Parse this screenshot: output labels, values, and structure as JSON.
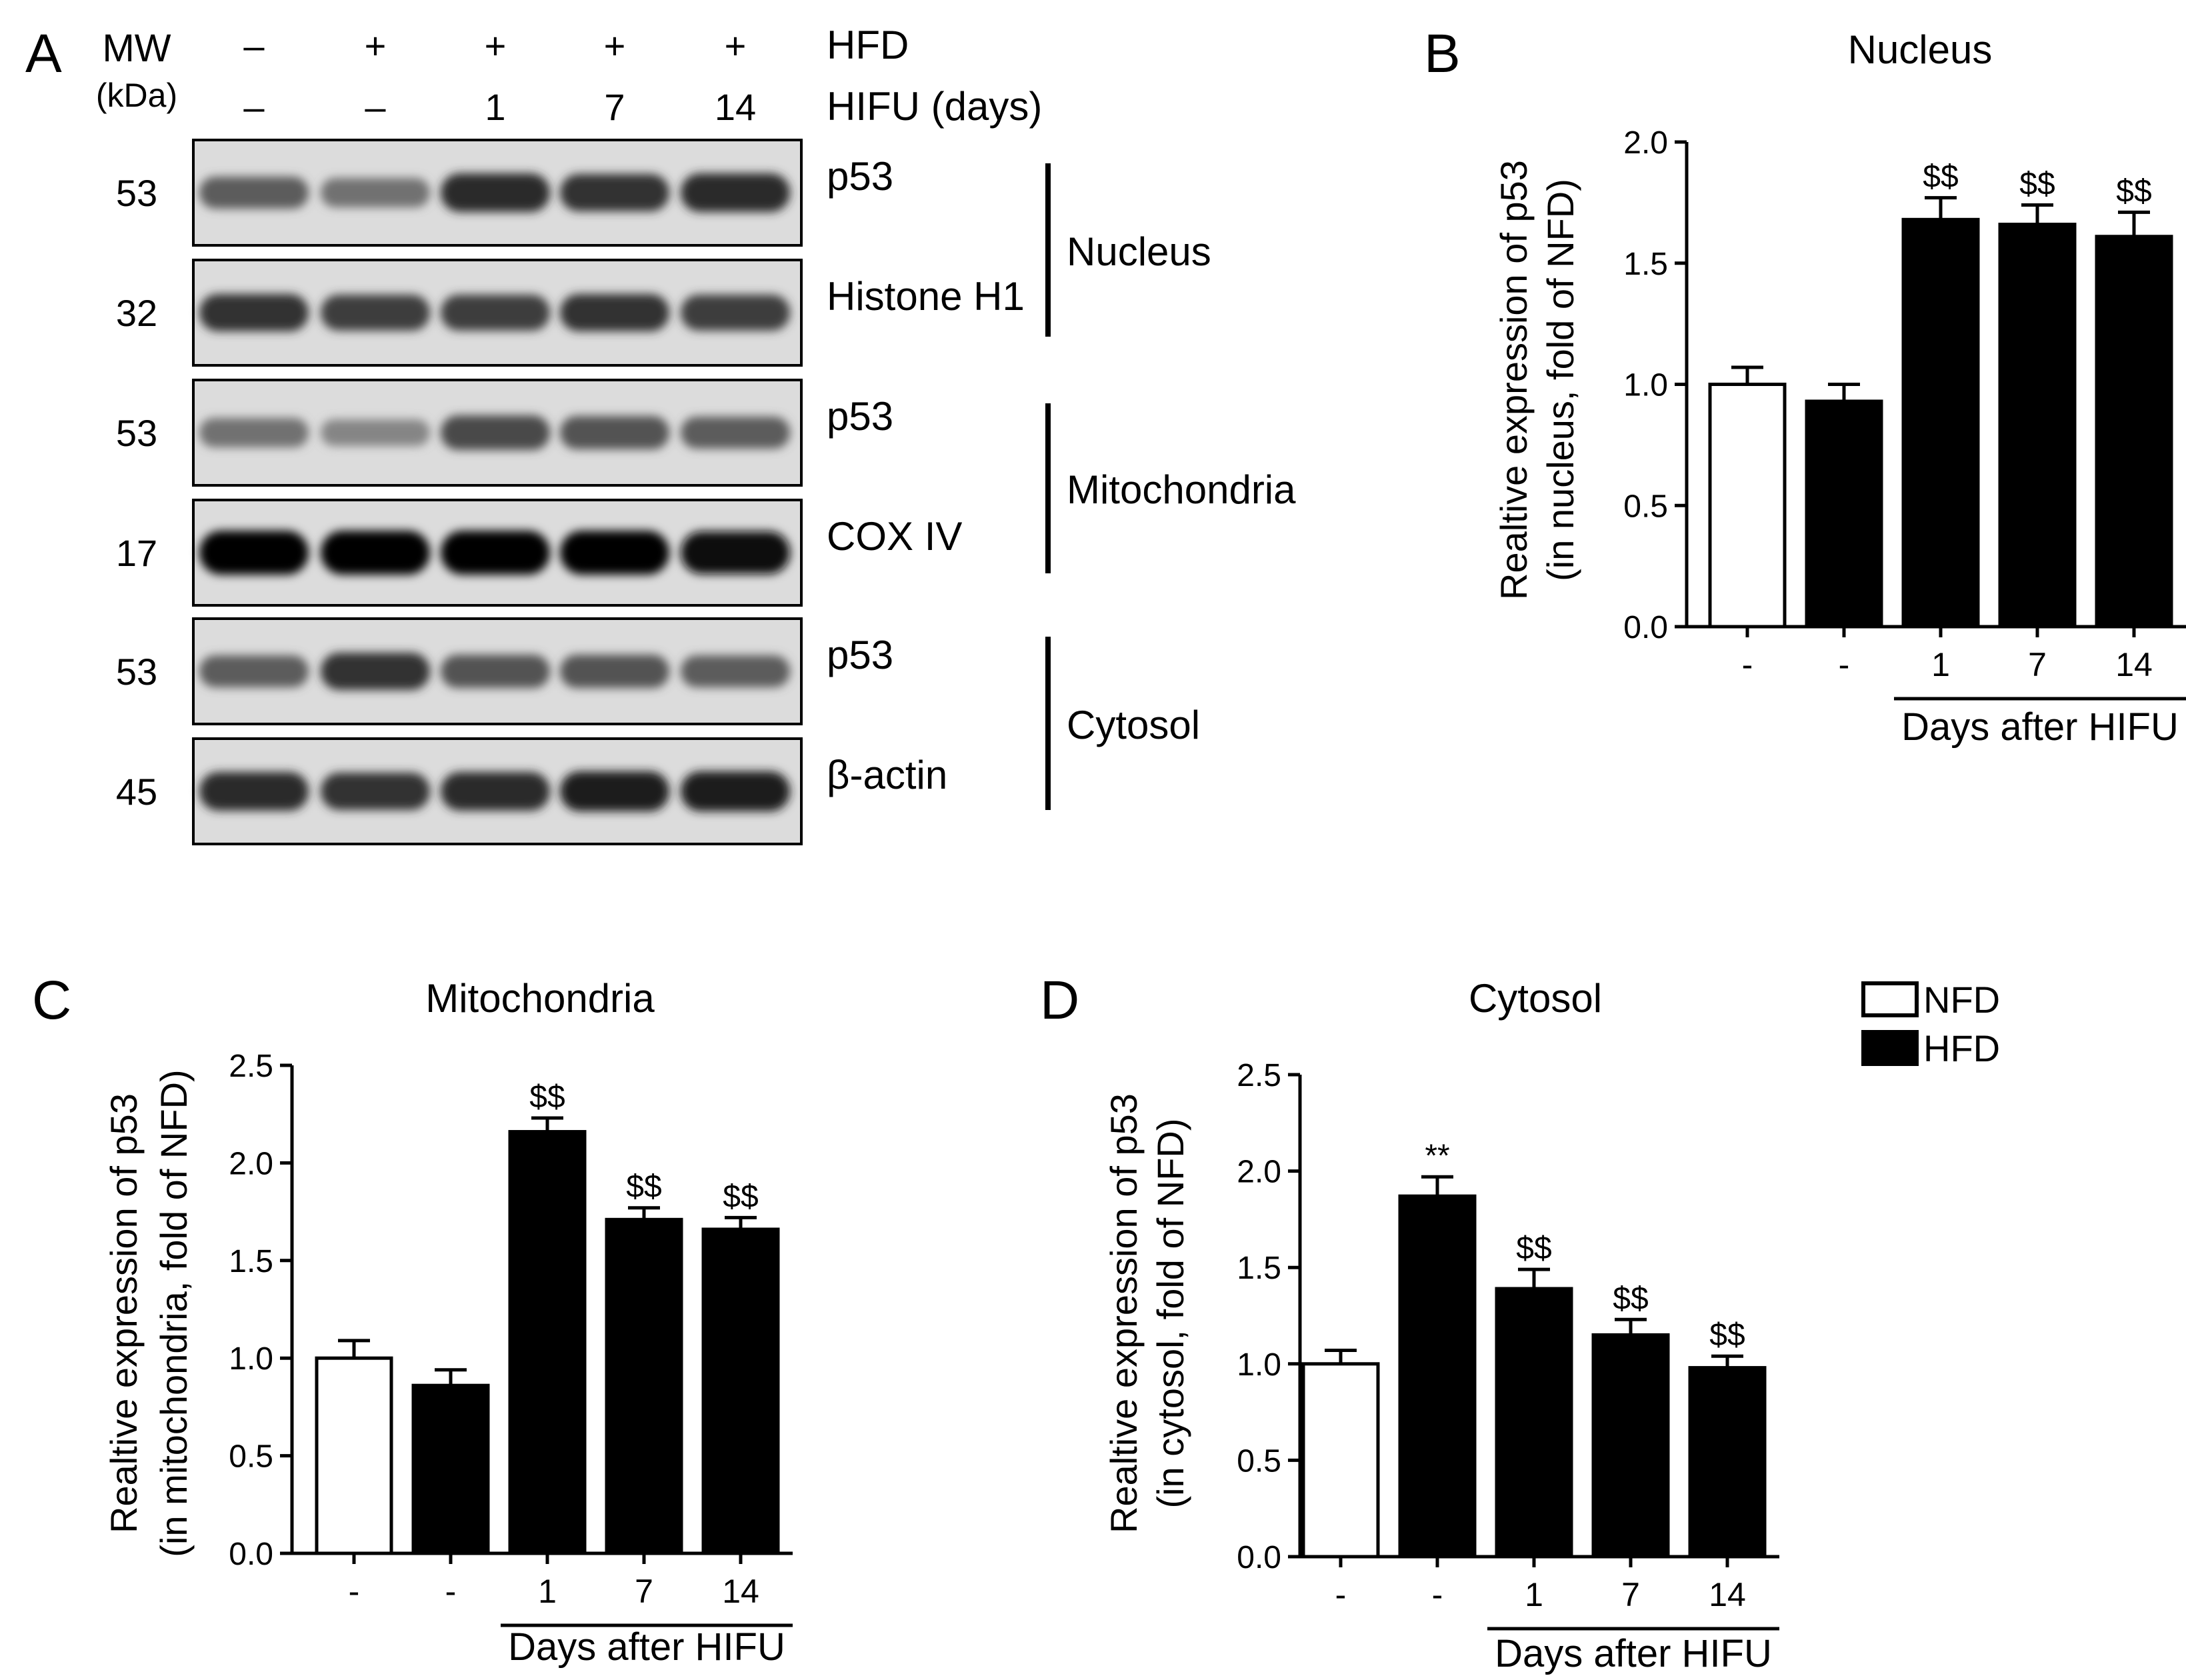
{
  "figure": {
    "panel_labels": [
      "A",
      "B",
      "C",
      "D"
    ],
    "legend": [
      {
        "label": "NFD",
        "fill": "#ffffff"
      },
      {
        "label": "HFD",
        "fill": "#000000"
      }
    ]
  },
  "blot": {
    "mw_header": "MW",
    "mw_unit": "(kDa)",
    "conditions": [
      {
        "label": "HFD",
        "values": [
          "–",
          "+",
          "+",
          "+",
          "+"
        ]
      },
      {
        "label": "HIFU (days)",
        "values": [
          "–",
          "–",
          "1",
          "7",
          "14"
        ]
      }
    ],
    "rows": [
      {
        "mw": "53",
        "protein": "p53",
        "band_intensity": [
          0.55,
          0.45,
          0.8,
          0.75,
          0.8
        ]
      },
      {
        "mw": "32",
        "protein": "Histone H1",
        "band_intensity": [
          0.75,
          0.7,
          0.7,
          0.75,
          0.7
        ]
      },
      {
        "mw": "53",
        "protein": "p53",
        "band_intensity": [
          0.45,
          0.35,
          0.65,
          0.6,
          0.55
        ]
      },
      {
        "mw": "17",
        "protein": "COX IV",
        "band_intensity": [
          1.0,
          1.0,
          1.0,
          1.0,
          0.95
        ]
      },
      {
        "mw": "53",
        "protein": "p53",
        "band_intensity": [
          0.55,
          0.75,
          0.6,
          0.6,
          0.55
        ]
      },
      {
        "mw": "45",
        "protein": "β-actin",
        "band_intensity": [
          0.8,
          0.75,
          0.8,
          0.85,
          0.85
        ]
      }
    ],
    "fractions": [
      {
        "label": "Nucleus",
        "rows": [
          0,
          1
        ]
      },
      {
        "label": "Mitochondria",
        "rows": [
          2,
          3
        ]
      },
      {
        "label": "Cytosol",
        "rows": [
          4,
          5
        ]
      }
    ]
  },
  "chart_data": [
    {
      "panel": "B",
      "type": "bar",
      "title": "Nucleus",
      "ylabel": [
        "Realtive expression of p53",
        "(in nucleus, fold of NFD)"
      ],
      "xlabel": "Days after HIFU",
      "categories": [
        "-",
        "-",
        "1",
        "7",
        "14"
      ],
      "group": [
        "NFD",
        "HFD",
        "HFD",
        "HFD",
        "HFD"
      ],
      "values": [
        1.0,
        0.93,
        1.68,
        1.66,
        1.61
      ],
      "errors": [
        0.07,
        0.07,
        0.09,
        0.08,
        0.1
      ],
      "annotations": [
        "",
        "",
        "$$",
        "$$",
        "$$"
      ],
      "ylim": [
        0,
        2.0
      ],
      "yticks": [
        "0.0",
        "0.5",
        "1.0",
        "1.5",
        "2.0"
      ],
      "grid": false
    },
    {
      "panel": "C",
      "type": "bar",
      "title": "Mitochondria",
      "ylabel": [
        "Realtive expression of p53",
        "(in mitochondria, fold of NFD)"
      ],
      "xlabel": "Days after HIFU",
      "categories": [
        "-",
        "-",
        "1",
        "7",
        "14"
      ],
      "group": [
        "NFD",
        "HFD",
        "HFD",
        "HFD",
        "HFD"
      ],
      "values": [
        1.0,
        0.86,
        2.16,
        1.71,
        1.66
      ],
      "errors": [
        0.09,
        0.08,
        0.07,
        0.06,
        0.06
      ],
      "annotations": [
        "",
        "",
        "$$",
        "$$",
        "$$"
      ],
      "ylim": [
        0,
        2.5
      ],
      "yticks": [
        "0.0",
        "0.5",
        "1.0",
        "1.5",
        "2.0",
        "2.5"
      ],
      "grid": false
    },
    {
      "panel": "D",
      "type": "bar",
      "title": "Cytosol",
      "ylabel": [
        "Realtive expression of p53",
        "(in cytosol, fold of NFD)"
      ],
      "xlabel": "Days after HIFU",
      "categories": [
        "-",
        "-",
        "1",
        "7",
        "14"
      ],
      "group": [
        "NFD",
        "HFD",
        "HFD",
        "HFD",
        "HFD"
      ],
      "values": [
        1.0,
        1.87,
        1.39,
        1.15,
        0.98
      ],
      "errors": [
        0.07,
        0.1,
        0.1,
        0.08,
        0.06
      ],
      "annotations": [
        "",
        "**",
        "$$",
        "$$",
        "$$"
      ],
      "ylim": [
        0,
        2.5
      ],
      "yticks": [
        "0.0",
        "0.5",
        "1.0",
        "1.5",
        "2.0",
        "2.5"
      ],
      "grid": false
    }
  ]
}
